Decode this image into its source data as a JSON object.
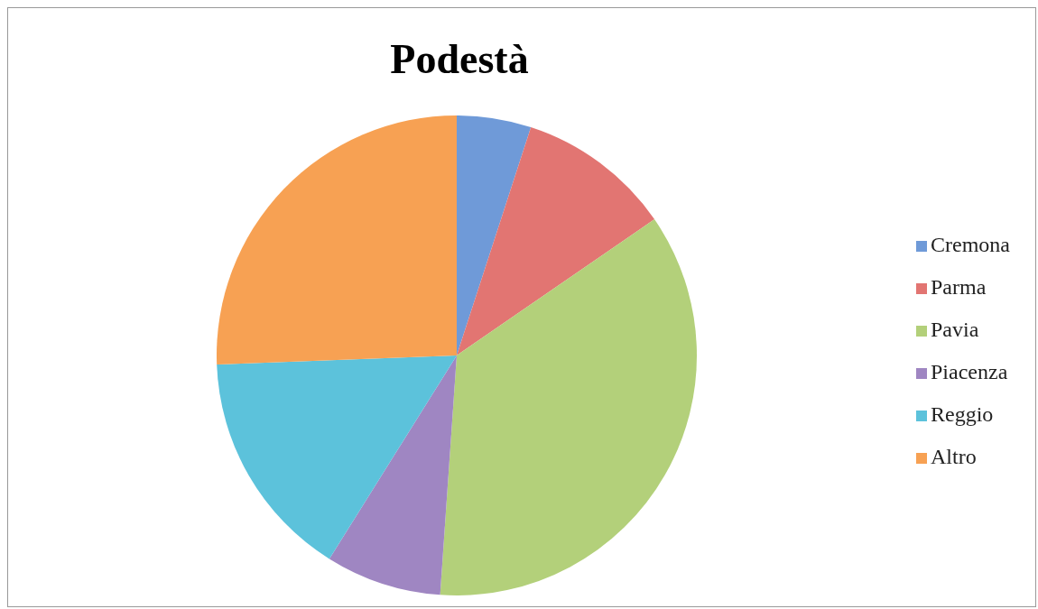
{
  "chart_data": {
    "type": "pie",
    "title": "Podestà",
    "categories": [
      "Cremona",
      "Parma",
      "Pavia",
      "Piacenza",
      "Reggio",
      "Altro"
    ],
    "values": [
      5,
      10.4,
      35.7,
      7.8,
      15.5,
      25.6
    ],
    "colors": [
      "#6f9ad8",
      "#e27572",
      "#b3d07a",
      "#9f86c2",
      "#5cc2db",
      "#f7a153"
    ],
    "legend": "right"
  }
}
